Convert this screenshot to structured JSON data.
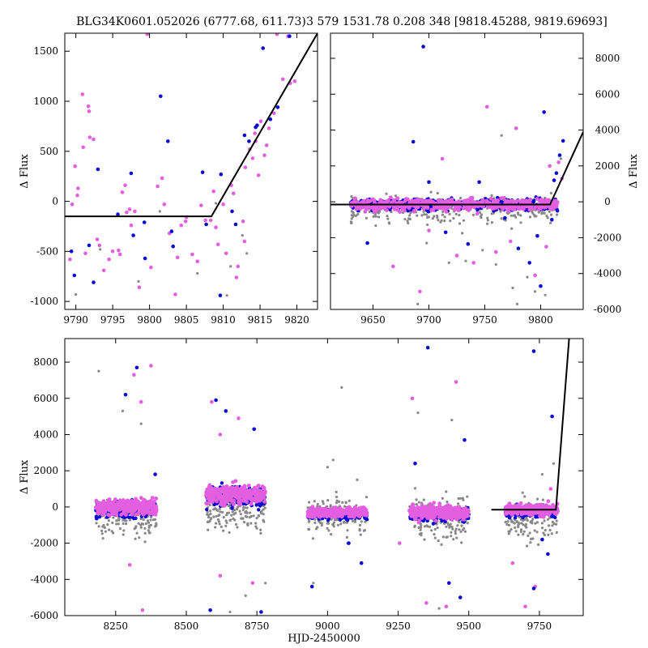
{
  "figure": {
    "colors": {
      "magenta": "#e35ee0",
      "blue": "#0a0ad8",
      "gray": "#888888",
      "fit": "#000000"
    }
  },
  "chart_data": [
    {
      "id": "zoom",
      "type": "scatter",
      "title": "BLG34K0601.052026 (6777.68, 611.73)",
      "xlabel": "",
      "ylabel": "Δ Flux",
      "xlim": [
        9788.5,
        9822.8
      ],
      "ylim": [
        -1080,
        1680
      ],
      "xticks": [
        9790,
        9795,
        9800,
        9805,
        9810,
        9815,
        9820
      ],
      "yticks": [
        -1000,
        -500,
        0,
        500,
        1000,
        1500
      ],
      "yaxis_side": "left",
      "fit_line": {
        "x": [
          9788.5,
          9808.4,
          9822.8
        ],
        "y": [
          -150,
          -150,
          1680
        ]
      },
      "series": [
        {
          "color": "magenta",
          "points": [
            [
              9789.2,
              -580
            ],
            [
              9789.5,
              -30
            ],
            [
              9789.9,
              350
            ],
            [
              9790.2,
              60
            ],
            [
              9790.3,
              130
            ],
            [
              9790.9,
              1070
            ],
            [
              9791.0,
              540
            ],
            [
              9791.3,
              -520
            ],
            [
              9791.7,
              950
            ],
            [
              9791.8,
              900
            ],
            [
              9791.9,
              640
            ],
            [
              9792.4,
              620
            ],
            [
              9792.9,
              -380
            ],
            [
              9793.2,
              -440
            ],
            [
              9793.8,
              -690
            ],
            [
              9794.5,
              -580
            ],
            [
              9795.0,
              -500
            ],
            [
              9795.8,
              -490
            ],
            [
              9796.0,
              -530
            ],
            [
              9796.3,
              90
            ],
            [
              9796.7,
              160
            ],
            [
              9796.9,
              -110
            ],
            [
              9797.3,
              -80
            ],
            [
              9797.5,
              -240
            ],
            [
              9798.0,
              -100
            ],
            [
              9798.6,
              -860
            ],
            [
              9799.7,
              1670
            ],
            [
              9800.2,
              -660
            ],
            [
              9801.1,
              150
            ],
            [
              9801.7,
              230
            ],
            [
              9802.0,
              -30
            ],
            [
              9802.7,
              -320
            ],
            [
              9803.5,
              -930
            ],
            [
              9803.8,
              -560
            ],
            [
              9804.3,
              -240
            ],
            [
              9804.9,
              -200
            ],
            [
              9805.0,
              -160
            ],
            [
              9805.8,
              -530
            ],
            [
              9806.5,
              -600
            ],
            [
              9807.0,
              -40
            ],
            [
              9807.6,
              -190
            ],
            [
              9808.3,
              -190
            ],
            [
              9808.7,
              100
            ],
            [
              9809.0,
              -260
            ],
            [
              9809.3,
              -430
            ],
            [
              9810.0,
              -30
            ],
            [
              9810.4,
              -520
            ],
            [
              9811.1,
              160
            ],
            [
              9811.4,
              80
            ],
            [
              9811.8,
              -760
            ],
            [
              9812.0,
              -650
            ],
            [
              9812.7,
              -200
            ],
            [
              9812.9,
              -400
            ],
            [
              9813.0,
              340
            ],
            [
              9813.6,
              520
            ],
            [
              9814.0,
              430
            ],
            [
              9814.3,
              680
            ],
            [
              9814.4,
              600
            ],
            [
              9814.8,
              260
            ],
            [
              9815.1,
              800
            ],
            [
              9815.6,
              460
            ],
            [
              9815.9,
              560
            ],
            [
              9816.2,
              730
            ],
            [
              9816.9,
              880
            ],
            [
              9817.3,
              1670
            ],
            [
              9818.1,
              1220
            ],
            [
              9818.8,
              1650
            ],
            [
              9819.1,
              1180
            ],
            [
              9819.7,
              1200
            ]
          ]
        },
        {
          "color": "blue",
          "points": [
            [
              9789.4,
              -500
            ],
            [
              9789.8,
              -740
            ],
            [
              9791.8,
              -440
            ],
            [
              9792.4,
              -810
            ],
            [
              9793.0,
              320
            ],
            [
              9795.7,
              -130
            ],
            [
              9797.5,
              280
            ],
            [
              9797.8,
              -340
            ],
            [
              9799.4,
              -570
            ],
            [
              9801.5,
              1050
            ],
            [
              9802.5,
              600
            ],
            [
              9803.0,
              -300
            ],
            [
              9803.2,
              -450
            ],
            [
              9807.2,
              290
            ],
            [
              9807.7,
              -230
            ],
            [
              9809.7,
              270
            ],
            [
              9811.2,
              -100
            ],
            [
              9811.7,
              -230
            ],
            [
              9812.9,
              660
            ],
            [
              9813.5,
              600
            ],
            [
              9814.4,
              740
            ],
            [
              9814.6,
              760
            ],
            [
              9815.4,
              1530
            ],
            [
              9816.4,
              820
            ],
            [
              9817.4,
              940
            ],
            [
              9819.0,
              1650
            ],
            [
              9809.6,
              -940
            ],
            [
              9799.3,
              -210
            ]
          ]
        },
        {
          "color": "gray",
          "points": [
            [
              9790.0,
              -930
            ],
            [
              9793.3,
              -480
            ],
            [
              9798.5,
              -800
            ],
            [
              9801.4,
              -100
            ],
            [
              9806.5,
              -720
            ],
            [
              9809.0,
              -20
            ],
            [
              9811.0,
              -650
            ],
            [
              9812.6,
              -340
            ],
            [
              9813.2,
              -520
            ],
            [
              9810.5,
              -940
            ]
          ]
        }
      ]
    },
    {
      "id": "season",
      "type": "scatter",
      "title": "3 579 1531.78 0.208 348 [9818.45288, 9819.69693]",
      "xlabel": "",
      "ylabel": "Δ Flux",
      "xlim": [
        9612,
        9838
      ],
      "ylim": [
        -6000,
        9400
      ],
      "xticks": [
        9650,
        9700,
        9750,
        9800
      ],
      "yticks": [
        -6000,
        -4000,
        -2000,
        0,
        2000,
        4000,
        6000,
        8000
      ],
      "yaxis_side": "right",
      "fit_line": {
        "x": [
          9612,
          9808.4,
          9838
        ],
        "y": [
          -150,
          -150,
          3900
        ]
      },
      "band": {
        "x0": 9630,
        "x1": 9815,
        "y_center": -150,
        "jitter": 220
      },
      "outliers": [
        {
          "color": "blue",
          "points": [
            [
              9645,
              -2300
            ],
            [
              9686,
              3350
            ],
            [
              9695,
              8650
            ],
            [
              9700,
              1100
            ],
            [
              9715,
              -1700
            ],
            [
              9735,
              -2350
            ],
            [
              9745,
              1100
            ],
            [
              9768,
              -900
            ],
            [
              9780,
              -2600
            ],
            [
              9790,
              -3400
            ],
            [
              9797,
              -1900
            ],
            [
              9800,
              -4700
            ],
            [
              9803,
              5000
            ],
            [
              9810,
              -1000
            ],
            [
              9814,
              1600
            ],
            [
              9817,
              2600
            ],
            [
              9820,
              3400
            ],
            [
              9812,
              1200
            ]
          ]
        },
        {
          "color": "magenta",
          "points": [
            [
              9668,
              -3600
            ],
            [
              9692,
              -5000
            ],
            [
              9700,
              -1600
            ],
            [
              9712,
              2400
            ],
            [
              9725,
              -3000
            ],
            [
              9740,
              -3400
            ],
            [
              9752,
              5300
            ],
            [
              9760,
              -2800
            ],
            [
              9773,
              -2200
            ],
            [
              9778,
              4100
            ],
            [
              9795,
              -4100
            ],
            [
              9805,
              -2500
            ],
            [
              9808,
              2000
            ],
            [
              9816,
              2200
            ],
            [
              9819,
              1300
            ]
          ]
        },
        {
          "color": "gray",
          "points": [
            [
              9690,
              -5700
            ],
            [
              9698,
              -2300
            ],
            [
              9718,
              -3400
            ],
            [
              9733,
              -3300
            ],
            [
              9748,
              -2700
            ],
            [
              9760,
              -3500
            ],
            [
              9775,
              -4800
            ],
            [
              9779,
              -5700
            ],
            [
              9788,
              -4200
            ],
            [
              9795,
              -5000
            ],
            [
              9804,
              -5200
            ],
            [
              9765,
              3700
            ],
            [
              9818,
              2400
            ]
          ]
        }
      ]
    },
    {
      "id": "full",
      "type": "scatter",
      "title": "",
      "xlabel": "HJD-2450000",
      "ylabel": "Δ Flux",
      "xlim": [
        8070,
        9905
      ],
      "ylim": [
        -6000,
        9300
      ],
      "xticks": [
        8250,
        8500,
        8750,
        9000,
        9250,
        9500,
        9750
      ],
      "yticks": [
        -6000,
        -4000,
        -2000,
        0,
        2000,
        4000,
        6000,
        8000
      ],
      "yaxis_side": "left",
      "fit_line": {
        "x": [
          9580,
          9808.4,
          9855
        ],
        "y": [
          -150,
          -150,
          9300
        ]
      },
      "seasons": [
        {
          "x0": 8180,
          "x1": 8395,
          "center": 0,
          "spread": 500,
          "gray_center": -600,
          "gray_spread": 900
        },
        {
          "x0": 8570,
          "x1": 8780,
          "center": 700,
          "spread": 600,
          "gray_center": -300,
          "gray_spread": 900
        },
        {
          "x0": 8930,
          "x1": 9140,
          "center": -300,
          "spread": 300,
          "gray_center": -500,
          "gray_spread": 1000
        },
        {
          "x0": 9290,
          "x1": 9500,
          "center": -300,
          "spread": 450,
          "gray_center": -600,
          "gray_spread": 1000
        },
        {
          "x0": 9630,
          "x1": 9815,
          "center": -150,
          "spread": 350,
          "gray_center": -700,
          "gray_spread": 1000
        }
      ],
      "outliers": [
        {
          "color": "gray",
          "points": [
            [
              8190,
              7500
            ],
            [
              8275,
              5300
            ],
            [
              8340,
              4600
            ],
            [
              9050,
              6600
            ],
            [
              9020,
              2600
            ],
            [
              9105,
              1500
            ],
            [
              9000,
              2200
            ],
            [
              8950,
              -4200
            ],
            [
              9320,
              5200
            ],
            [
              9395,
              -5600
            ],
            [
              9440,
              4800
            ],
            [
              8710,
              -4900
            ],
            [
              8780,
              -4200
            ],
            [
              8655,
              -5800
            ],
            [
              9760,
              1800
            ],
            [
              9800,
              2400
            ]
          ]
        },
        {
          "color": "magenta",
          "points": [
            [
              8315,
              7300
            ],
            [
              8375,
              7800
            ],
            [
              8340,
              5800
            ],
            [
              8300,
              -3200
            ],
            [
              8345,
              -5700
            ],
            [
              8590,
              5800
            ],
            [
              8620,
              4000
            ],
            [
              8685,
              4900
            ],
            [
              8620,
              -3800
            ],
            [
              8735,
              -4200
            ],
            [
              9300,
              6000
            ],
            [
              9455,
              6900
            ],
            [
              9350,
              -5300
            ],
            [
              9420,
              -5500
            ],
            [
              9655,
              -3100
            ],
            [
              9700,
              -5500
            ],
            [
              9735,
              -4400
            ],
            [
              9790,
              1000
            ],
            [
              9255,
              -2000
            ]
          ]
        },
        {
          "color": "blue",
          "points": [
            [
              8285,
              6200
            ],
            [
              8325,
              7700
            ],
            [
              8390,
              1800
            ],
            [
              8605,
              5900
            ],
            [
              8640,
              5300
            ],
            [
              8740,
              4300
            ],
            [
              8765,
              -5800
            ],
            [
              8585,
              -5700
            ],
            [
              8945,
              -4400
            ],
            [
              9075,
              -2000
            ],
            [
              9120,
              -3100
            ],
            [
              9355,
              8800
            ],
            [
              9430,
              -4200
            ],
            [
              9470,
              -5000
            ],
            [
              9485,
              3700
            ],
            [
              9310,
              2400
            ],
            [
              9730,
              8600
            ],
            [
              9795,
              5000
            ],
            [
              9760,
              -1800
            ],
            [
              9780,
              -2600
            ],
            [
              9730,
              -4500
            ]
          ]
        }
      ]
    }
  ]
}
